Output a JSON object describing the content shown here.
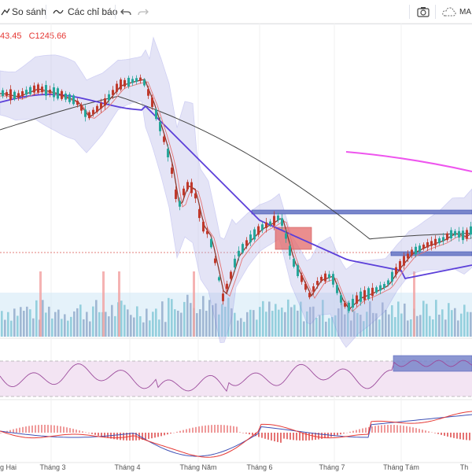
{
  "toolbar": {
    "compare_label": "So sánh",
    "indicators_label": "Các chỉ báo",
    "ma_label": "MA",
    "icons": [
      "compare-icon",
      "indicators-icon",
      "undo-icon",
      "redo-icon",
      "camera-icon",
      "cloud-icon"
    ]
  },
  "legend": {
    "value_a": "43.45",
    "close_value": "C1245.66"
  },
  "xaxis": {
    "labels": [
      "g Hai",
      "Tháng 3",
      "Tháng 4",
      "Tháng Năm",
      "Tháng 6",
      "Tháng 7",
      "Tháng Tám",
      "Th"
    ]
  },
  "colors": {
    "up": "#26a69a",
    "down": "#c0392b",
    "band": "#b3b3e6",
    "band_line": "#7b7be0",
    "ma_purple": "#5b3fd9",
    "ma_dark": "#444444",
    "ma_magenta": "#ee55ee",
    "rsi_fill": "#f3e4f3",
    "rsi_line": "#9c4c9c",
    "macd_pos": "#ef9a9a",
    "macd_neg": "#e57373"
  }
}
